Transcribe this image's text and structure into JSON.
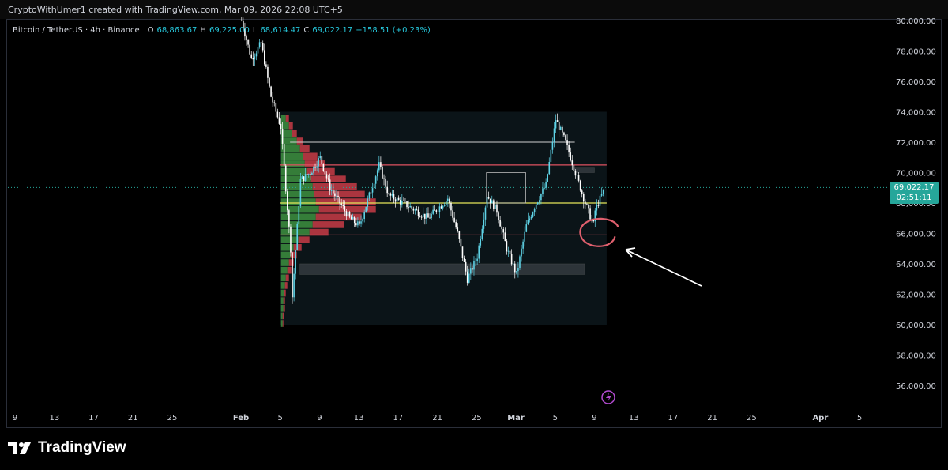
{
  "header": {
    "credit": "CryptoWithUmer1 created with TradingView.com, Mar 09, 2026 22:08 UTC+5"
  },
  "legend": {
    "symbol": "Bitcoin / TetherUS · 4h · Binance",
    "o_label": "O",
    "o_value": "68,863.67",
    "h_label": "H",
    "h_value": "69,225.00",
    "l_label": "L",
    "l_value": "68,614.47",
    "c_label": "C",
    "c_value": "69,022.17",
    "change": "+158.51 (+0.23%)"
  },
  "price_tag": {
    "price": "69,022.17",
    "countdown": "02:51:11"
  },
  "footer": {
    "brand": "TradingView"
  },
  "colors": {
    "up": "#26a69a",
    "candle_up": "#5fd3e6",
    "down": "#ffffff",
    "support_line": "#e05260",
    "poc_line": "#e7e85a",
    "range_line": "#cfcfcf",
    "annotation_circle": "#e0606e",
    "arrow": "#ffffff",
    "vp_green": "#3d8f3f",
    "vp_red": "#c83b47"
  },
  "chart_data": {
    "type": "candlestick",
    "title": "Bitcoin / TetherUS · 4h · Binance",
    "ylim": [
      55000,
      80500
    ],
    "y_ticks": [
      "56,000.00",
      "58,000.00",
      "60,000.00",
      "62,000.00",
      "64,000.00",
      "66,000.00",
      "68,000.00",
      "70,000.00",
      "72,000.00",
      "74,000.00",
      "76,000.00",
      "78,000.00",
      "80,000.00"
    ],
    "x_ticks": [
      "9",
      "13",
      "17",
      "21",
      "25",
      "Feb",
      "5",
      "9",
      "13",
      "17",
      "21",
      "25",
      "Mar",
      "5",
      "9",
      "13",
      "17",
      "21",
      "25",
      "Apr",
      "5"
    ],
    "price_path": [
      [
        "2026-02-01",
        80000
      ],
      [
        "2026-02-02",
        77500
      ],
      [
        "2026-02-03",
        78500
      ],
      [
        "2026-02-04",
        75000
      ],
      [
        "2026-02-05",
        73000
      ],
      [
        "2026-02-06",
        65000
      ],
      [
        "2026-02-06",
        60300
      ],
      [
        "2026-02-07",
        69500
      ],
      [
        "2026-02-08",
        70000
      ],
      [
        "2026-02-09",
        71000
      ],
      [
        "2026-02-10",
        69000
      ],
      [
        "2026-02-12",
        67000
      ],
      [
        "2026-02-13",
        66500
      ],
      [
        "2026-02-14",
        68500
      ],
      [
        "2026-02-15",
        70500
      ],
      [
        "2026-02-16",
        68500
      ],
      [
        "2026-02-18",
        67800
      ],
      [
        "2026-02-20",
        67000
      ],
      [
        "2026-02-22",
        68300
      ],
      [
        "2026-02-23",
        66000
      ],
      [
        "2026-02-24",
        63000
      ],
      [
        "2026-02-25",
        64500
      ],
      [
        "2026-02-26",
        68500
      ],
      [
        "2026-02-27",
        67500
      ],
      [
        "2026-02-28",
        65000
      ],
      [
        "2026-03-01",
        63300
      ],
      [
        "2026-03-02",
        66500
      ],
      [
        "2026-03-03",
        68000
      ],
      [
        "2026-03-04",
        69200
      ],
      [
        "2026-03-05",
        73500
      ],
      [
        "2026-03-06",
        72000
      ],
      [
        "2026-03-07",
        70000
      ],
      [
        "2026-03-08",
        68000
      ],
      [
        "2026-03-09",
        66300
      ],
      [
        "2026-03-09",
        67500
      ],
      [
        "2026-03-10",
        69022.17
      ]
    ],
    "levels": {
      "range_high": 72000,
      "resistance": 70500,
      "point_of_control": 68000,
      "support": 65900
    },
    "zones": [
      [
        63300,
        64000
      ],
      [
        70000,
        70300
      ]
    ],
    "last_price": 69022.17,
    "last_close_date": "2026-03-10",
    "grid": false
  }
}
